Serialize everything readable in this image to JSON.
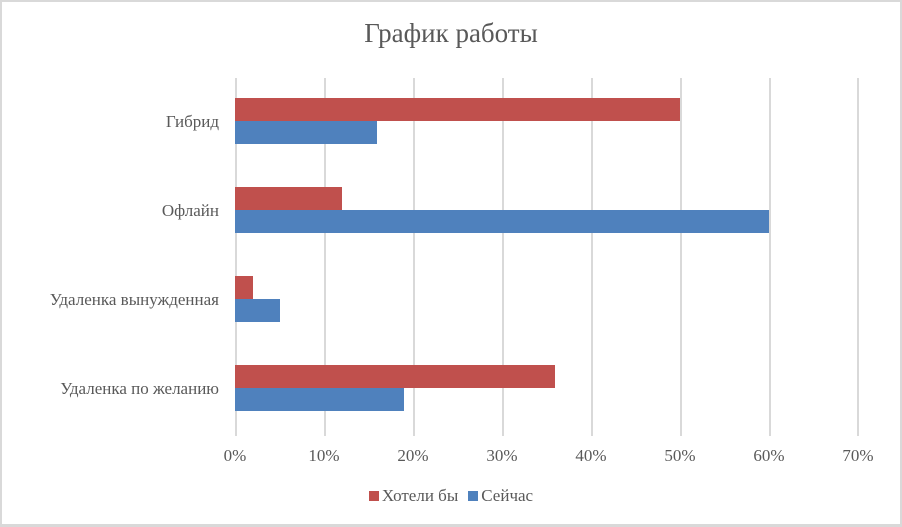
{
  "chart_data": {
    "type": "bar",
    "orientation": "horizontal",
    "title": "График работы",
    "categories": [
      "Гибрид",
      "Офлайн",
      "Удаленка вынужденная",
      "Удаленка по желанию"
    ],
    "series": [
      {
        "name": "Хотели бы",
        "color": "#c0504d",
        "values": [
          50,
          12,
          2,
          36
        ]
      },
      {
        "name": "Сейчас",
        "color": "#4f81bd",
        "values": [
          16,
          60,
          5,
          19
        ]
      }
    ],
    "xlabel": "",
    "ylabel": "",
    "xlim": [
      0,
      70
    ],
    "x_ticks": [
      "0%",
      "10%",
      "20%",
      "30%",
      "40%",
      "50%",
      "60%",
      "70%"
    ],
    "grid": true,
    "legend_position": "bottom"
  },
  "labels": {
    "title": "График работы",
    "cat0": "Гибрид",
    "cat1": "Офлайн",
    "cat2": "Удаленка вынужденная",
    "cat3": "Удаленка по желанию",
    "t0": "0%",
    "t1": "10%",
    "t2": "20%",
    "t3": "30%",
    "t4": "40%",
    "t5": "50%",
    "t6": "60%",
    "t7": "70%",
    "leg0": "Хотели бы",
    "leg1": "Сейчас"
  }
}
